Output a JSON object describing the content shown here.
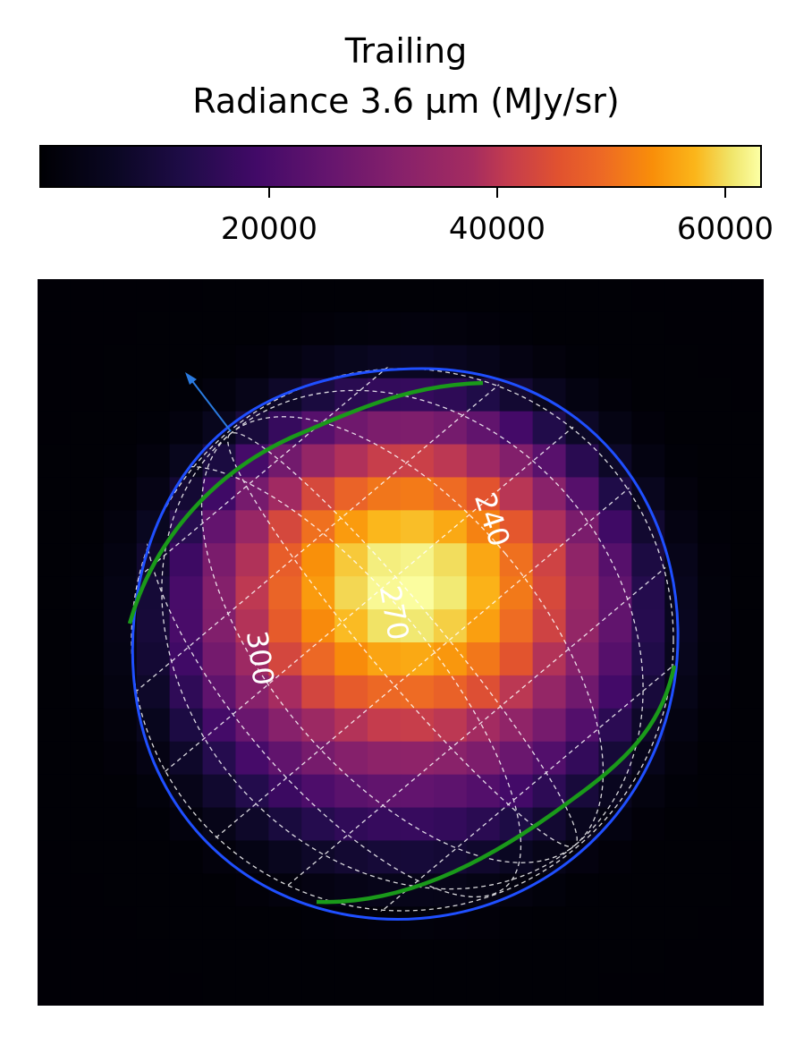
{
  "chart_data": {
    "type": "heatmap",
    "title": "Trailing",
    "subtitle": "Radiance 3.6 μm (MJy/sr)",
    "colormap": "inferno",
    "colorbar": {
      "ticks": [
        20000,
        40000,
        60000
      ],
      "tick_labels": [
        "20000",
        "40000",
        "60000"
      ],
      "min": 0,
      "max": 63000
    },
    "grid_size": 22,
    "peak": {
      "col": 11.2,
      "row": 9.3,
      "value": 63000
    },
    "disk_radius_cells": 7.7,
    "disk_center": {
      "col": 11.2,
      "row": 10.9
    },
    "longitude_labels": [
      "240",
      "270",
      "300"
    ],
    "colors": {
      "limb": "#1f4fff",
      "grid_lines": "#ffffff",
      "terminator": "#1a9a1a",
      "north_arrow": "#2a7adf",
      "background": "#08090b"
    }
  }
}
